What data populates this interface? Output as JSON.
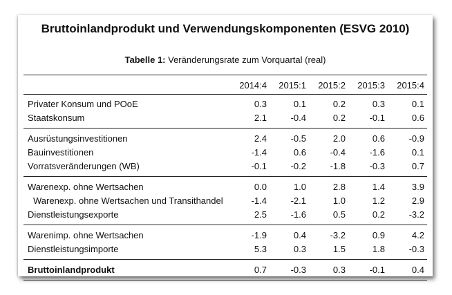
{
  "title": "Bruttoinlandprodukt und Verwendungskomponenten (ESVG 2010)",
  "subtitle": {
    "bold": "Tabelle 1:",
    "rest": " Veränderungsrate zum Vorquartal (real)"
  },
  "columns": [
    "2014:4",
    "2015:1",
    "2015:2",
    "2015:3",
    "2015:4"
  ],
  "groups": [
    {
      "rows": [
        {
          "label": "Privater Konsum und POoE",
          "values": [
            "0.3",
            "0.1",
            "0.2",
            "0.3",
            "0.1"
          ]
        },
        {
          "label": "Staatskonsum",
          "values": [
            "2.1",
            "-0.4",
            "0.2",
            "-0.1",
            "0.6"
          ]
        }
      ]
    },
    {
      "rows": [
        {
          "label": "Ausrüstungsinvestitionen",
          "values": [
            "2.4",
            "-0.5",
            "2.0",
            "0.6",
            "-0.9"
          ]
        },
        {
          "label": "Bauinvestitionen",
          "values": [
            "-1.4",
            "0.6",
            "-0.4",
            "-1.6",
            "0.1"
          ]
        },
        {
          "label": "Vorratsveränderungen (WB)",
          "values": [
            "-0.1",
            "-0.2",
            "-1.8",
            "-0.3",
            "0.7"
          ]
        }
      ]
    },
    {
      "rows": [
        {
          "label": "Warenexp. ohne Wertsachen",
          "values": [
            "0.0",
            "1.0",
            "2.8",
            "1.4",
            "3.9"
          ]
        },
        {
          "label": "Warenexp. ohne Wertsachen und Transithandel",
          "indent": true,
          "values": [
            "-1.4",
            "-2.1",
            "1.0",
            "1.2",
            "2.9"
          ]
        },
        {
          "label": "Dienstleistungsexporte",
          "values": [
            "2.5",
            "-1.6",
            "0.5",
            "0.2",
            "-3.2"
          ]
        }
      ]
    },
    {
      "rows": [
        {
          "label": "Warenimp. ohne Wertsachen",
          "values": [
            "-1.9",
            "0.4",
            "-3.2",
            "0.9",
            "4.2"
          ]
        },
        {
          "label": "Dienstleistungsimporte",
          "values": [
            "5.3",
            "0.3",
            "1.5",
            "1.8",
            "-0.3"
          ]
        }
      ]
    },
    {
      "rows": [
        {
          "label": "Bruttoinlandprodukt",
          "bold": true,
          "values": [
            "0.7",
            "-0.3",
            "0.3",
            "-0.1",
            "0.4"
          ]
        }
      ]
    }
  ]
}
